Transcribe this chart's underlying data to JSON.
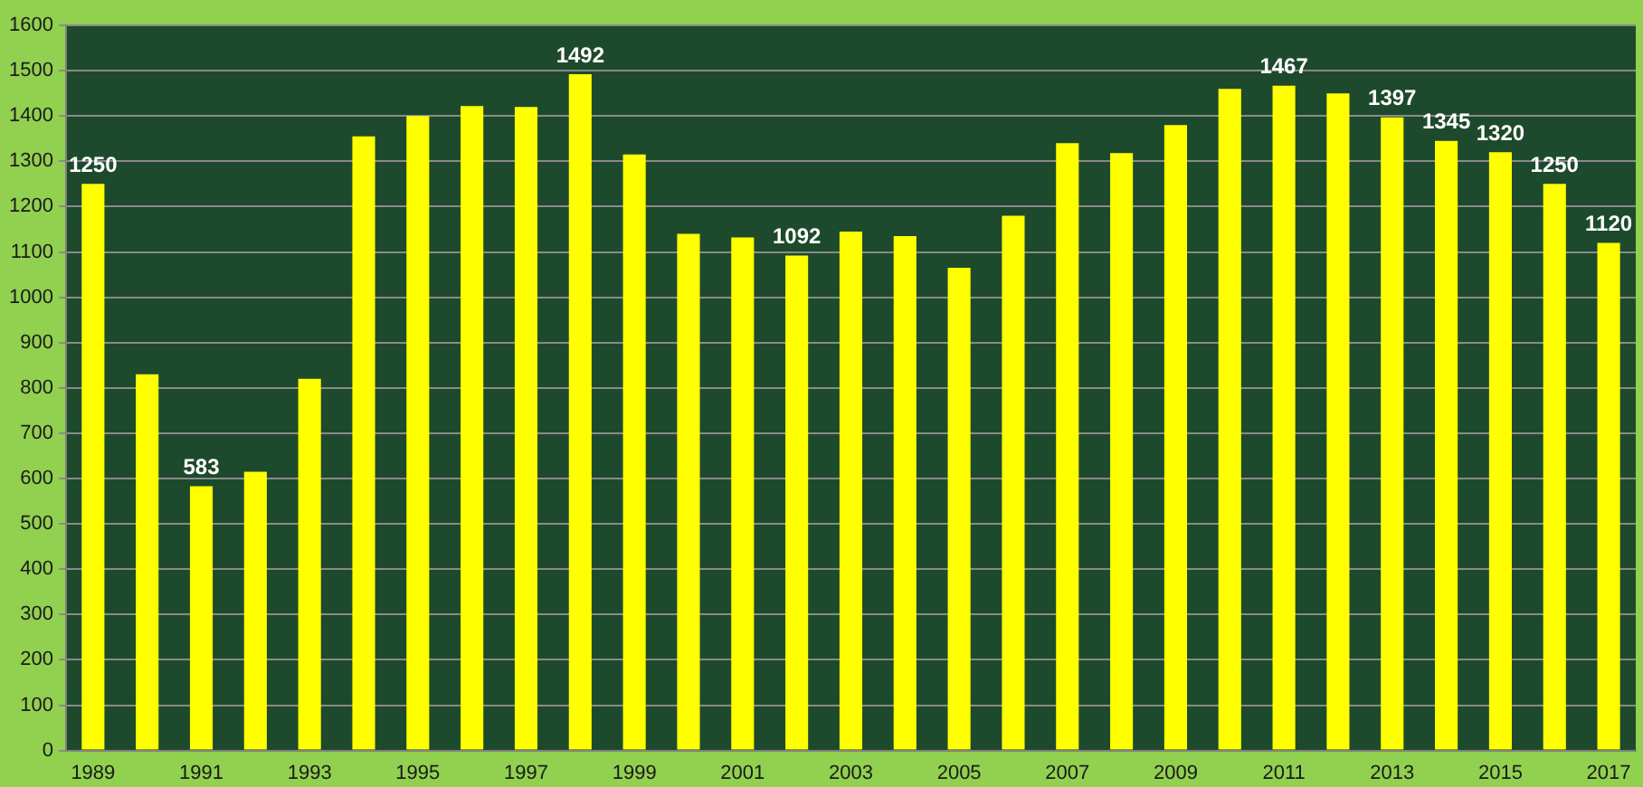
{
  "chart_data": {
    "type": "bar",
    "categories": [
      "1989",
      null,
      "1991",
      null,
      "1993",
      null,
      "1995",
      null,
      "1997",
      null,
      "1999",
      null,
      "2001",
      null,
      "2003",
      null,
      "2005",
      null,
      "2007",
      null,
      "2009",
      null,
      "2011",
      null,
      "2013",
      null,
      "2015",
      null,
      "2017"
    ],
    "values": [
      1250,
      830,
      583,
      615,
      820,
      1355,
      1400,
      1422,
      1420,
      1492,
      1315,
      1140,
      1132,
      1092,
      1145,
      1135,
      1065,
      1180,
      1340,
      1318,
      1380,
      1460,
      1467,
      1450,
      1397,
      1345,
      1320,
      1250,
      1120
    ],
    "value_labels": [
      "1250",
      null,
      "583",
      null,
      null,
      null,
      null,
      null,
      null,
      "1492",
      null,
      null,
      null,
      "1092",
      null,
      null,
      null,
      null,
      null,
      null,
      null,
      null,
      "1467",
      null,
      "1397",
      "1345",
      "1320",
      "1250",
      "1120"
    ],
    "color": "#ffff00",
    "ylim": [
      0,
      1600
    ],
    "yticks": [
      0,
      100,
      200,
      300,
      400,
      500,
      600,
      700,
      800,
      900,
      1000,
      1100,
      1200,
      1300,
      1400,
      1500,
      1600
    ],
    "grid": "y",
    "legend": false
  }
}
